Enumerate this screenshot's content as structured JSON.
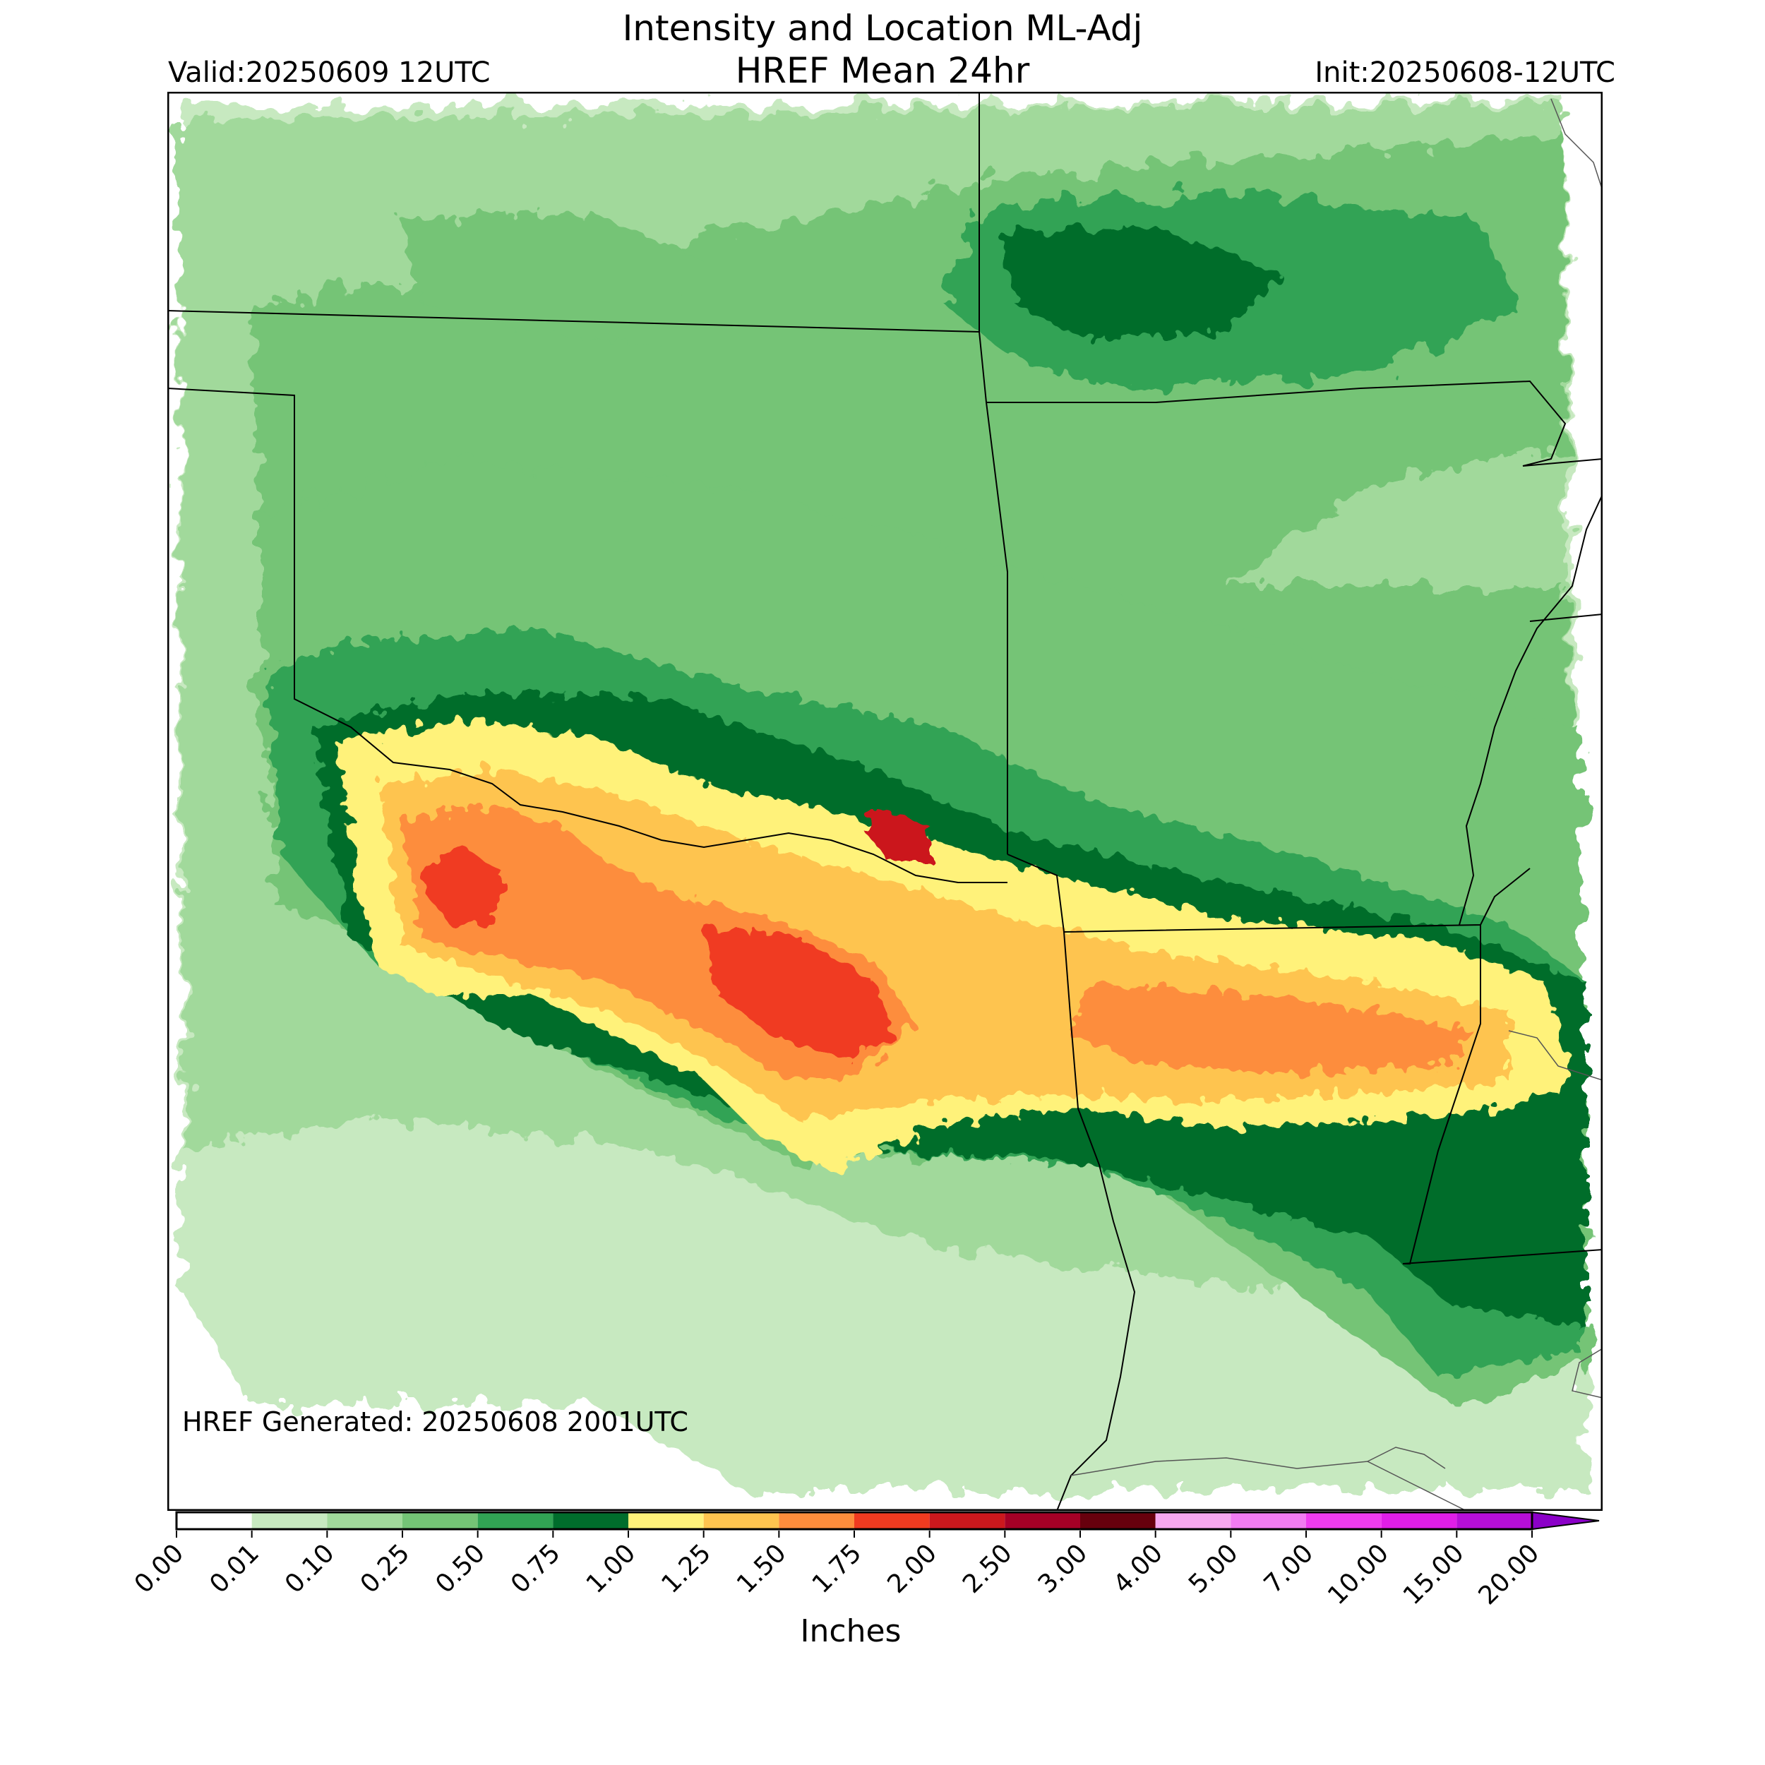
{
  "header": {
    "title_line1": "Intensity and Location ML-Adj",
    "title_line2": "HREF Mean 24hr",
    "valid": "Valid:20250609 12UTC",
    "init": "Init:20250608-12UTC"
  },
  "footer": {
    "generated": "HREF Generated: 20250608 2001UTC"
  },
  "colorbar": {
    "unit_label": "Inches",
    "ticks": [
      "0.00",
      "0.01",
      "0.10",
      "0.25",
      "0.50",
      "0.75",
      "1.00",
      "1.25",
      "1.50",
      "1.75",
      "2.00",
      "2.50",
      "3.00",
      "4.00",
      "5.00",
      "7.00",
      "10.00",
      "15.00",
      "20.00"
    ],
    "colors": [
      "#ffffff",
      "#c7e9c0",
      "#a1d99b",
      "#74c476",
      "#31a354",
      "#006d2c",
      "#fff27a",
      "#fec44f",
      "#fd8d3c",
      "#f03b20",
      "#cb181d",
      "#a50026",
      "#67000d",
      "#f7a8f0",
      "#f27cf2",
      "#f03cf0",
      "#e01ee8",
      "#b70fd8",
      "#8b00c8"
    ],
    "extend_max": true
  },
  "map": {
    "region": "Southern Plains / Lower Mississippi Valley",
    "legend_placement": "bottom colorbar"
  }
}
